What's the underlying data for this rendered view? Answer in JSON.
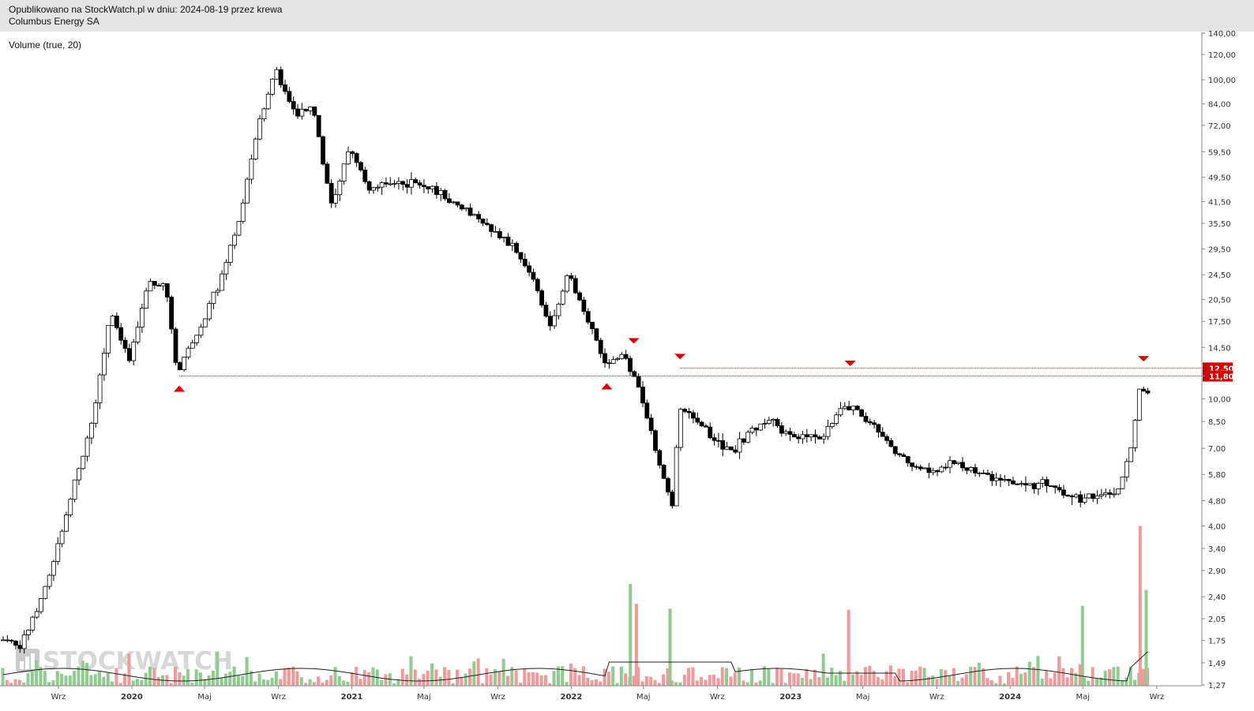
{
  "header": {
    "published": "Opublikowano na StockWatch.pl w dniu: 2024-08-19 przez krewa",
    "company": "Columbus Energy SA"
  },
  "indicator": {
    "label": "Volume (true, 20)"
  },
  "watermark": {
    "text": "STOCKWATCH"
  },
  "colors": {
    "candle_up": "#ffffff",
    "candle_down": "#000000",
    "volume_up": "#8fcc8f",
    "volume_down": "#f29a9a",
    "marker": "#e00000",
    "level_line": "#d40000",
    "volume_ma": "#222222"
  },
  "chart_data": {
    "type": "candlestick",
    "y_scale": "log",
    "ylim": [
      1.27,
      140
    ],
    "y_ticks": [
      "140,00",
      "120,00",
      "100,00",
      "84,00",
      "72,00",
      "59,50",
      "49,50",
      "41,50",
      "35,50",
      "29,50",
      "24,50",
      "20,50",
      "17,50",
      "14,50",
      "11,80",
      "10,00",
      "8,50",
      "7,00",
      "5,80",
      "4,80",
      "4,00",
      "3,40",
      "2,90",
      "2,40",
      "2,05",
      "1,75",
      "1,49",
      "1,27"
    ],
    "x_ticks": [
      "Wrz",
      "2020",
      "Maj",
      "Wrz",
      "2021",
      "Maj",
      "Wrz",
      "2022",
      "Maj",
      "Wrz",
      "2023",
      "Maj",
      "Wrz",
      "2024",
      "Maj",
      "Wrz"
    ],
    "date_range": [
      "2019-06",
      "2024-08-19"
    ],
    "anchors": [
      [
        "2019-06",
        1.75
      ],
      [
        "2019-07",
        1.65
      ],
      [
        "2019-08",
        2.2
      ],
      [
        "2019-09",
        3.3
      ],
      [
        "2019-10",
        5.5
      ],
      [
        "2019-11",
        8.5
      ],
      [
        "2019-12",
        19.0
      ],
      [
        "2020-01",
        13.0
      ],
      [
        "2020-02",
        23.5
      ],
      [
        "2020-03",
        22.5
      ],
      [
        "2020-03-20",
        11.8
      ],
      [
        "2020-04",
        13.5
      ],
      [
        "2020-05",
        17.0
      ],
      [
        "2020-06",
        24.0
      ],
      [
        "2020-07",
        36.0
      ],
      [
        "2020-08",
        70.0
      ],
      [
        "2020-09",
        108.0
      ],
      [
        "2020-10",
        78.0
      ],
      [
        "2020-11",
        82.0
      ],
      [
        "2020-12",
        40.0
      ],
      [
        "2021-01",
        62.0
      ],
      [
        "2021-02",
        45.0
      ],
      [
        "2021-03",
        48.0
      ],
      [
        "2021-05",
        47.0
      ],
      [
        "2021-06",
        44.0
      ],
      [
        "2021-08",
        37.0
      ],
      [
        "2021-09",
        33.0
      ],
      [
        "2021-10",
        30.0
      ],
      [
        "2021-11",
        24.0
      ],
      [
        "2021-12",
        17.0
      ],
      [
        "2022-01",
        25.0
      ],
      [
        "2022-02",
        17.5
      ],
      [
        "2022-03",
        13.0
      ],
      [
        "2022-04",
        13.5
      ],
      [
        "2022-05",
        10.5
      ],
      [
        "2022-06",
        6.0
      ],
      [
        "2022-06-25",
        4.5
      ],
      [
        "2022-07",
        9.5
      ],
      [
        "2022-08",
        8.4
      ],
      [
        "2022-09",
        7.4
      ],
      [
        "2022-10",
        6.9
      ],
      [
        "2022-11",
        8.0
      ],
      [
        "2022-12",
        8.6
      ],
      [
        "2023-01",
        7.6
      ],
      [
        "2023-03",
        7.6
      ],
      [
        "2023-04",
        9.5
      ],
      [
        "2023-05",
        9.0
      ],
      [
        "2023-06",
        7.9
      ],
      [
        "2023-07",
        6.6
      ],
      [
        "2023-08",
        6.2
      ],
      [
        "2023-09",
        6.0
      ],
      [
        "2023-10",
        6.4
      ],
      [
        "2023-11",
        6.0
      ],
      [
        "2023-12",
        5.7
      ],
      [
        "2024-01",
        5.5
      ],
      [
        "2024-02",
        5.3
      ],
      [
        "2024-03",
        5.5
      ],
      [
        "2024-04",
        5.1
      ],
      [
        "2024-05",
        4.9
      ],
      [
        "2024-06",
        5.0
      ],
      [
        "2024-07",
        5.2
      ],
      [
        "2024-07-25",
        7.0
      ],
      [
        "2024-08-05",
        11.0
      ],
      [
        "2024-08-19",
        10.3
      ]
    ],
    "levels": [
      {
        "label": "12,50",
        "value": 12.5,
        "from": "2022-07"
      },
      {
        "label": "11,80",
        "value": 11.8,
        "from": "2020-03-20"
      }
    ],
    "markers": [
      {
        "date": "2020-03-20",
        "type": "up",
        "value": 11.8
      },
      {
        "date": "2022-03",
        "type": "up",
        "value": 12.0
      },
      {
        "date": "2022-04-15",
        "type": "down",
        "value": 14.0
      },
      {
        "date": "2022-07-01",
        "type": "down",
        "value": 12.5
      },
      {
        "date": "2023-04-10",
        "type": "down",
        "value": 11.9
      },
      {
        "date": "2024-08-10",
        "type": "down",
        "value": 12.3
      }
    ],
    "volume": {
      "max_label": "4,00",
      "spikes": [
        {
          "date": "2022-04-10",
          "value": 2.55
        },
        {
          "date": "2022-04-20",
          "value": 2.05
        },
        {
          "date": "2022-06-15",
          "value": 1.93
        },
        {
          "date": "2023-04-08",
          "value": 1.9
        },
        {
          "date": "2024-05-01",
          "value": 2.0
        },
        {
          "date": "2024-08-05",
          "value": 4.0
        },
        {
          "date": "2024-08-15",
          "value": 2.4
        }
      ]
    }
  }
}
